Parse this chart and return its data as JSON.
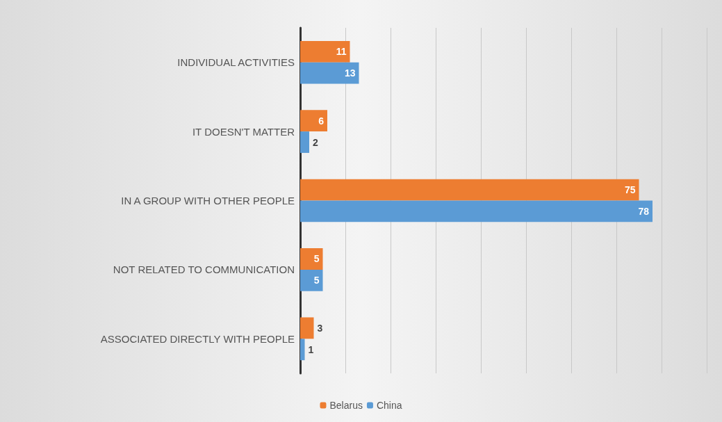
{
  "chart_data": {
    "type": "bar",
    "orientation": "horizontal",
    "categories": [
      "INDIVIDUAL ACTIVITIES",
      "IT DOESN'T MATTER",
      "IN A GROUP WITH OTHER PEOPLE",
      "NOT RELATED TO COMMUNICATION",
      "ASSOCIATED DIRECTLY WITH PEOPLE"
    ],
    "series": [
      {
        "name": "Belarus",
        "color": "#ed7d31",
        "values": [
          11,
          6,
          75,
          5,
          3
        ]
      },
      {
        "name": "China",
        "color": "#5b9bd5",
        "values": [
          13,
          2,
          78,
          5,
          1
        ]
      }
    ],
    "xlim": [
      0,
      90
    ],
    "xticks": [
      {
        "value": 0,
        "label": null
      },
      {
        "value": 10,
        "label": null
      },
      {
        "value": 20,
        "label": null
      },
      {
        "value": 30,
        "label": null
      },
      {
        "value": 40,
        "label": null
      },
      {
        "value": 50,
        "label": null
      },
      {
        "value": 60,
        "label": null
      },
      {
        "value": 70,
        "label": null
      },
      {
        "value": 80,
        "label": null
      },
      {
        "value": 90,
        "label": null
      }
    ],
    "tick_labels": "y",
    "grid": "x",
    "data_labels": true,
    "legend": "bottom"
  }
}
